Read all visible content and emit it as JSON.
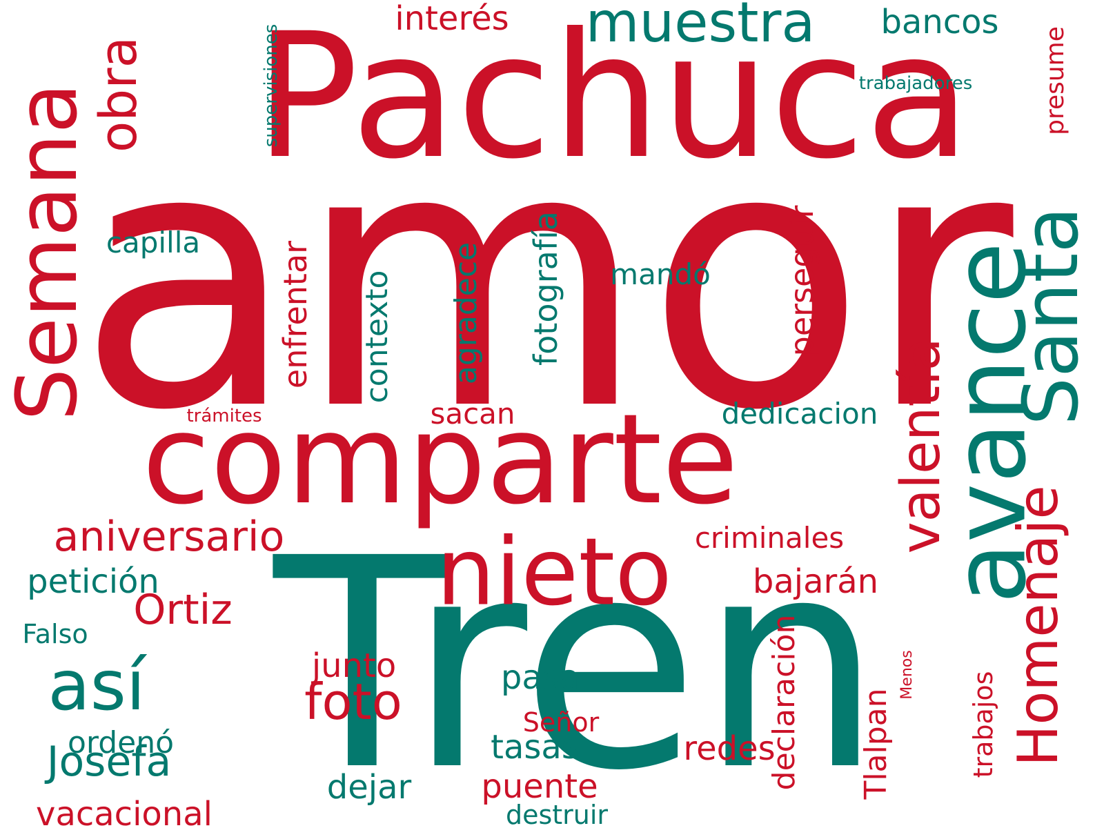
{
  "colors": {
    "red": "#cb1128",
    "teal": "#04796e",
    "background": "#ffffff"
  },
  "words": {
    "amor": "amor",
    "tren": "Tren",
    "pachuca": "Pachuca",
    "comparte": "comparte",
    "nieto": "nieto",
    "avance": "avance",
    "semana": "Semana",
    "santa": "Santa",
    "homenaje": "Homenaje",
    "muestra": "muestra",
    "valentia": "valentía",
    "asi": "así",
    "obra": "obra",
    "aniversario": "aniversario",
    "foto": "foto",
    "ortiz": "Ortiz",
    "josefa": "Josefa",
    "interes": "interés",
    "bancos": "bancos",
    "peticion": "petición",
    "capilla": "capilla",
    "fotografia": "fotografía",
    "perseguir": "perseguir",
    "enfrentar": "enfrentar",
    "contexto": "contexto",
    "agradece": "agradece",
    "mando": "mandó",
    "dedicacion": "dedicacion",
    "sacan": "sacan",
    "criminales": "criminales",
    "bajaran": "bajarán",
    "junto": "junto",
    "pasa": "pasa",
    "ordeno": "ordenó",
    "falso": "Falso",
    "vacacional": "vacacional",
    "dejar": "dejar",
    "puente": "puente",
    "destruir": "destruir",
    "tasas": "tasas",
    "senor": "Señor",
    "redes": "redes",
    "declaracion": "declaración",
    "tlalpan": "Tlalpan",
    "trabajos": "trabajos",
    "menos": "Menos",
    "presume": "presume",
    "trabajadores": "trabajadores",
    "supervisiones": "supervisiones",
    "tramites": "trámites"
  }
}
